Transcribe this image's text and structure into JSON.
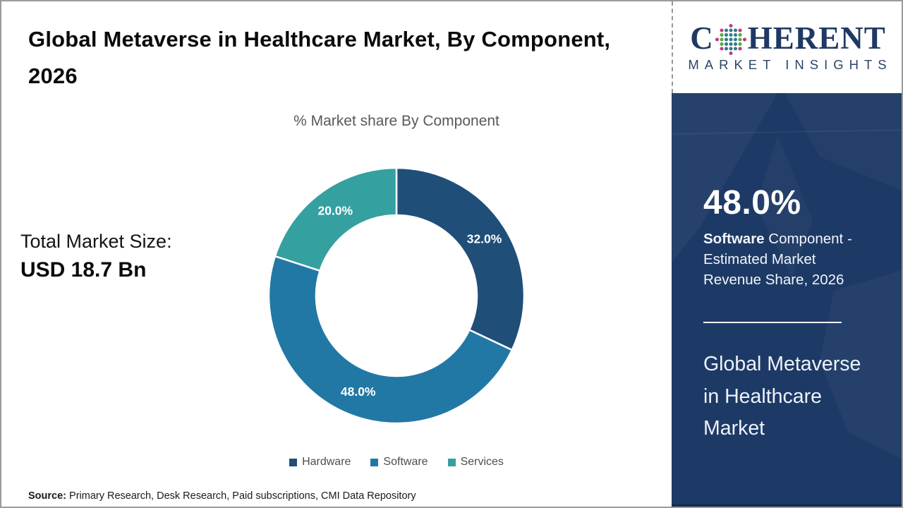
{
  "header": {
    "title": "Global Metaverse in Healthcare Market, By Component, 2026"
  },
  "total_market": {
    "label": "Total Market Size:",
    "value": "USD 18.7 Bn"
  },
  "chart_data": {
    "type": "pie",
    "subtype": "donut",
    "title": "% Market share By Component",
    "categories": [
      "Hardware",
      "Software",
      "Services"
    ],
    "values": [
      32.0,
      48.0,
      20.0
    ],
    "labels": [
      "32.0%",
      "48.0%",
      "20.0%"
    ],
    "colors": [
      "#1F4E79",
      "#2278A5",
      "#35A0A0"
    ],
    "start_angle_deg": 0,
    "direction": "clockwise",
    "hole_ratio": 0.63,
    "legend_position": "bottom",
    "label_color": "#ffffff"
  },
  "source": {
    "prefix": "Source:",
    "text": " Primary Research, Desk Research, Paid subscriptions, CMI Data Repository"
  },
  "logo": {
    "brand_first": "C",
    "brand_rest": "HERENT",
    "subtitle": "MARKET INSIGHTS",
    "brand_color": "#1f3864",
    "globe_dot_colors": {
      "outer": "#c13a80",
      "mid": "#5ba546",
      "center": "#2e7d8c"
    }
  },
  "sidebar": {
    "bg_color": "#1d3a66",
    "stat_value": "48.0%",
    "stat_desc_bold": "Software",
    "stat_desc_rest": " Component - Estimated Market Revenue Share, 2026",
    "panel_title": "Global Metaverse in Healthcare Market"
  }
}
